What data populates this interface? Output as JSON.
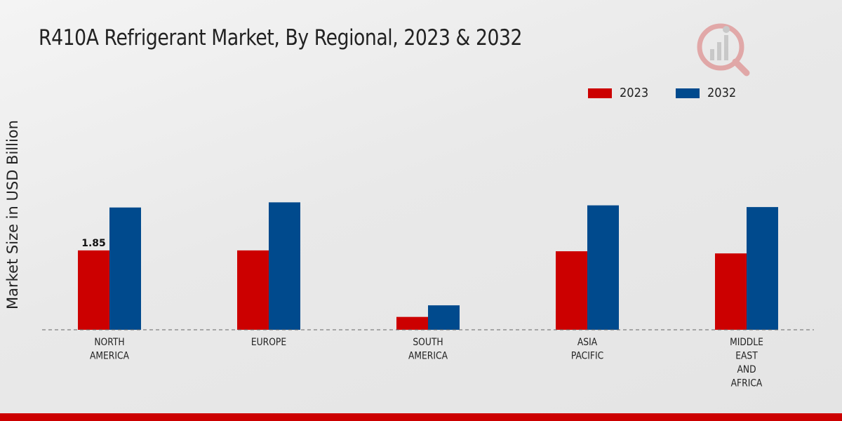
{
  "chart_data": {
    "type": "bar",
    "title": "R410A Refrigerant Market, By Regional, 2023 & 2032",
    "xlabel": "",
    "ylabel": "Market Size in USD Billion",
    "categories": [
      [
        "NORTH",
        "AMERICA"
      ],
      [
        "EUROPE"
      ],
      [
        "SOUTH",
        "AMERICA"
      ],
      [
        "ASIA",
        "PACIFIC"
      ],
      [
        "MIDDLE",
        "EAST",
        "AND",
        "AFRICA"
      ]
    ],
    "series": [
      {
        "name": "2023",
        "color": "#cc0000",
        "values": [
          1.85,
          1.85,
          0.3,
          1.83,
          1.78
        ]
      },
      {
        "name": "2032",
        "color": "#004a8d",
        "values": [
          2.85,
          2.97,
          0.57,
          2.9,
          2.86
        ]
      }
    ],
    "data_labels": [
      {
        "series": 0,
        "index": 0,
        "text": "1.85"
      }
    ],
    "ylim": [
      0,
      5.2
    ],
    "grid": false,
    "legend_position": "top-right"
  },
  "branding": {
    "bottom_bar_color": "#cc0000",
    "logo_icon": "analytics-logo-icon"
  }
}
